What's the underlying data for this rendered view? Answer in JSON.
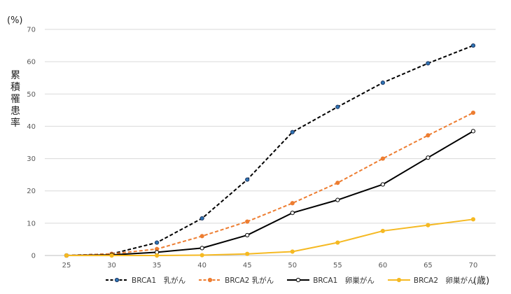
{
  "chart_data": {
    "type": "line",
    "x": [
      25,
      30,
      35,
      40,
      45,
      50,
      55,
      60,
      65,
      70
    ],
    "xlabel": "(歳)",
    "ylabel": "累積罹患率",
    "y_unit": "(%)",
    "ylim": [
      0,
      70
    ],
    "yticks": [
      0,
      10,
      20,
      30,
      40,
      50,
      60,
      70
    ],
    "grid": true,
    "legend_position": "bottom",
    "series": [
      {
        "name": "BRCA1　乳がん",
        "values": [
          0,
          0.5,
          4,
          11.5,
          23.5,
          38.2,
          46,
          53.5,
          59.5,
          65
        ],
        "color": "#000000",
        "dashed": true,
        "marker": "#2e75b6"
      },
      {
        "name": "BRCA2 乳がん",
        "values": [
          0,
          0.5,
          2,
          6,
          10.5,
          16.2,
          22.5,
          30,
          37.2,
          44.2
        ],
        "color": "#ed7d31",
        "dashed": true,
        "marker": "#ed7d31"
      },
      {
        "name": "BRCA1　卵巣がん",
        "values": [
          0,
          0.2,
          1,
          2.3,
          6.3,
          13.2,
          17.2,
          22,
          30.3,
          38.5
        ],
        "color": "#000000",
        "dashed": false,
        "marker": "#ffffff"
      },
      {
        "name": "BRCA2　卵巣がん",
        "values": [
          0,
          0,
          0,
          0.1,
          0.5,
          1.2,
          4,
          7.6,
          9.4,
          11.2
        ],
        "color": "#f5b922",
        "dashed": false,
        "marker": "#f5b922"
      }
    ]
  }
}
